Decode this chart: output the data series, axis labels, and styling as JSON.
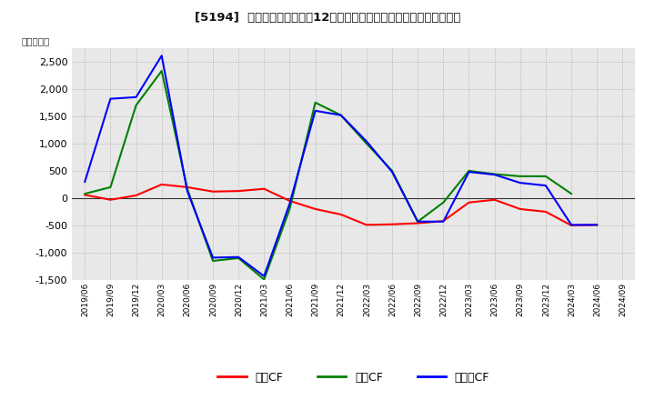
{
  "title": "[5194]  キャッシュフローの12か月移動合計の対前年同期増減額の推移",
  "ylabel": "（百万円）",
  "background_color": "#ffffff",
  "plot_bg_color": "#e8e8e8",
  "ylim": [
    -1500,
    2750
  ],
  "yticks": [
    -1500,
    -1000,
    -500,
    0,
    500,
    1000,
    1500,
    2000,
    2500
  ],
  "x_labels": [
    "2019/06",
    "2019/09",
    "2019/12",
    "2020/03",
    "2020/06",
    "2020/09",
    "2020/12",
    "2021/03",
    "2021/06",
    "2021/09",
    "2021/12",
    "2022/03",
    "2022/06",
    "2022/09",
    "2022/12",
    "2023/03",
    "2023/06",
    "2023/09",
    "2023/12",
    "2024/03",
    "2024/06",
    "2024/09"
  ],
  "series": {
    "営業CF": {
      "color": "#ff0000",
      "data": [
        60,
        -30,
        50,
        250,
        200,
        120,
        130,
        170,
        -50,
        -200,
        -300,
        -490,
        -480,
        -460,
        -420,
        -80,
        -30,
        -200,
        -250,
        -500,
        -490,
        null
      ]
    },
    "投資CF": {
      "color": "#008000",
      "data": [
        80,
        200,
        1700,
        2330,
        170,
        -1150,
        -1100,
        -1490,
        -200,
        1750,
        1520,
        1000,
        500,
        -430,
        -80,
        500,
        440,
        400,
        400,
        80,
        null,
        null
      ]
    },
    "フリーCF": {
      "color": "#0000ff",
      "data": [
        300,
        1820,
        1850,
        2610,
        130,
        -1090,
        -1080,
        -1430,
        -100,
        1600,
        1520,
        1040,
        480,
        -430,
        -430,
        480,
        430,
        280,
        230,
        -490,
        -490,
        null
      ]
    }
  },
  "legend_entries": [
    "営業CF",
    "投資CF",
    "フリーCF"
  ],
  "legend_colors": [
    "#ff0000",
    "#008000",
    "#0000ff"
  ]
}
